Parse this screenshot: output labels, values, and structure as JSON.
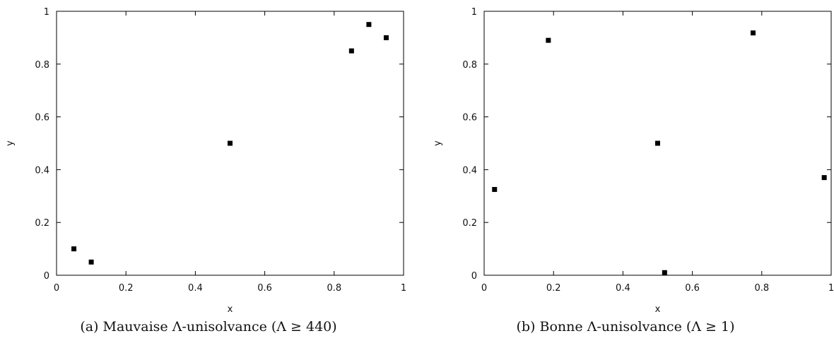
{
  "chart_data": [
    {
      "type": "scatter",
      "xlabel": "x",
      "ylabel": "y",
      "xlim": [
        0,
        1
      ],
      "ylim": [
        0,
        1
      ],
      "xticks": [
        "0",
        "0.2",
        "0.4",
        "0.6",
        "0.8",
        "1"
      ],
      "yticks": [
        "0",
        "0.2",
        "0.4",
        "0.6",
        "0.8",
        "1"
      ],
      "grid": false,
      "marker": "square",
      "marker_color": "#000000",
      "points": [
        {
          "x": 0.05,
          "y": 0.1
        },
        {
          "x": 0.1,
          "y": 0.05
        },
        {
          "x": 0.5,
          "y": 0.5
        },
        {
          "x": 0.85,
          "y": 0.85
        },
        {
          "x": 0.9,
          "y": 0.95
        },
        {
          "x": 0.95,
          "y": 0.9
        }
      ],
      "caption": "(a)  Mauvaise Λ-unisolvance (Λ ≥ 440)"
    },
    {
      "type": "scatter",
      "xlabel": "x",
      "ylabel": "y",
      "xlim": [
        0,
        1
      ],
      "ylim": [
        0,
        1
      ],
      "xticks": [
        "0",
        "0.2",
        "0.4",
        "0.6",
        "0.8",
        "1"
      ],
      "yticks": [
        "0",
        "0.2",
        "0.4",
        "0.6",
        "0.8",
        "1"
      ],
      "grid": false,
      "marker": "square",
      "marker_color": "#000000",
      "points": [
        {
          "x": 0.03,
          "y": 0.325
        },
        {
          "x": 0.185,
          "y": 0.89
        },
        {
          "x": 0.5,
          "y": 0.5
        },
        {
          "x": 0.52,
          "y": 0.01
        },
        {
          "x": 0.775,
          "y": 0.918
        },
        {
          "x": 0.98,
          "y": 0.37
        }
      ],
      "caption": "(b)  Bonne Λ-unisolvance (Λ ≥ 1)"
    }
  ]
}
